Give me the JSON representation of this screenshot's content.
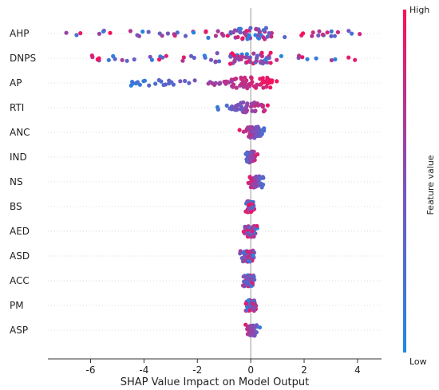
{
  "chart_data": {
    "type": "scatter",
    "subtype": "shap-beeswarm",
    "title": "",
    "xlabel": "SHAP Value Impact on Model Output",
    "ylabel": "",
    "xlim": [
      -7.6,
      4.9
    ],
    "xticks": [
      "-6",
      "-4",
      "-2",
      "0",
      "2",
      "4"
    ],
    "xtick_values": [
      -6,
      -4,
      -2,
      0,
      2,
      4
    ],
    "grid": "dotted horizontal lines per feature",
    "colorbar": {
      "label": "Feature value",
      "high_label": "High",
      "low_label": "Low",
      "low_color": "#1e88e5",
      "high_color": "#ff0d57"
    },
    "features": [
      {
        "name": "AHP",
        "shap_min": -7.0,
        "shap_max": 4.3,
        "blue_side": "both"
      },
      {
        "name": "DNPS",
        "shap_min": -6.0,
        "shap_max": 4.0,
        "blue_side": "mixed"
      },
      {
        "name": "AP",
        "shap_min": -4.7,
        "shap_max": 1.3,
        "blue_side": "negative"
      },
      {
        "name": "RTI",
        "shap_min": -1.4,
        "shap_max": 0.9,
        "blue_side": "negative"
      },
      {
        "name": "ANC",
        "shap_min": -0.5,
        "shap_max": 0.7,
        "blue_side": "positive"
      },
      {
        "name": "IND",
        "shap_min": -0.3,
        "shap_max": 0.3,
        "blue_side": "negative"
      },
      {
        "name": "NS",
        "shap_min": -0.2,
        "shap_max": 0.6,
        "blue_side": "positive"
      },
      {
        "name": "BS",
        "shap_min": -0.3,
        "shap_max": 0.2,
        "blue_side": "mixed"
      },
      {
        "name": "AED",
        "shap_min": -0.4,
        "shap_max": 0.3,
        "blue_side": "mixed"
      },
      {
        "name": "ASD",
        "shap_min": -0.5,
        "shap_max": 0.3,
        "blue_side": "mixed"
      },
      {
        "name": "ACC",
        "shap_min": -0.4,
        "shap_max": 0.3,
        "blue_side": "mixed"
      },
      {
        "name": "PM",
        "shap_min": -0.3,
        "shap_max": 0.3,
        "blue_side": "mixed"
      },
      {
        "name": "ASP",
        "shap_min": -0.3,
        "shap_max": 0.4,
        "blue_side": "positive"
      }
    ]
  }
}
